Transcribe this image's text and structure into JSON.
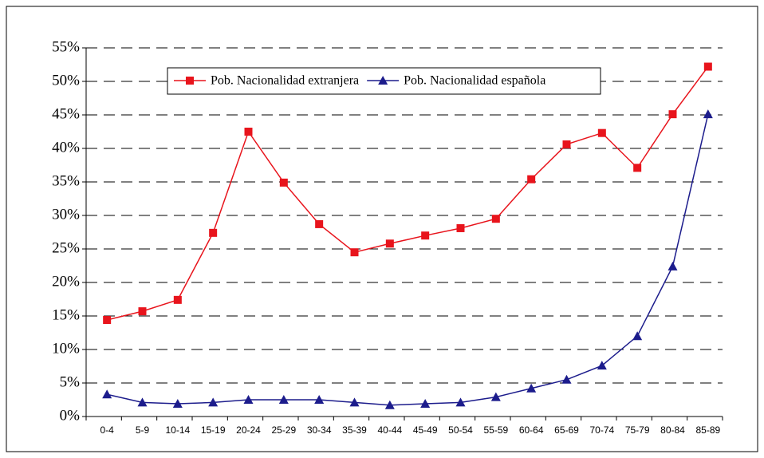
{
  "chart_data": {
    "type": "line",
    "categories": [
      "0-4",
      "5-9",
      "10-14",
      "15-19",
      "20-24",
      "25-29",
      "30-34",
      "35-39",
      "40-44",
      "45-49",
      "50-54",
      "55-59",
      "60-64",
      "65-69",
      "70-74",
      "75-79",
      "80-84",
      "85-89"
    ],
    "series": [
      {
        "name": "Pob. Nacionalidad extranjera",
        "color": "#e8141c",
        "marker": "square",
        "values": [
          14.4,
          15.7,
          17.4,
          27.4,
          42.5,
          34.9,
          28.7,
          24.5,
          25.8,
          27.0,
          28.1,
          29.5,
          35.4,
          40.6,
          42.3,
          37.1,
          45.1,
          52.2
        ]
      },
      {
        "name": "Pob. Nacionalidad española",
        "color": "#1c1c8c",
        "marker": "triangle",
        "values": [
          3.3,
          2.1,
          1.9,
          2.1,
          2.5,
          2.5,
          2.5,
          2.1,
          1.7,
          1.9,
          2.1,
          2.9,
          4.2,
          5.5,
          7.6,
          12.0,
          22.4,
          45.1
        ]
      }
    ],
    "ylim": [
      0,
      55
    ],
    "yticks": [
      {
        "value": 0,
        "label": "0%"
      },
      {
        "value": 5,
        "label": "5%"
      },
      {
        "value": 10,
        "label": "10%"
      },
      {
        "value": 15,
        "label": "15%"
      },
      {
        "value": 20,
        "label": "20%"
      },
      {
        "value": 25,
        "label": "25%"
      },
      {
        "value": 30,
        "label": "30%"
      },
      {
        "value": 35,
        "label": "35%"
      },
      {
        "value": 40,
        "label": "40%"
      },
      {
        "value": 45,
        "label": "45%"
      },
      {
        "value": 50,
        "label": "50%"
      },
      {
        "value": 55,
        "label": "55%"
      }
    ],
    "grid": true,
    "legend": "top"
  }
}
